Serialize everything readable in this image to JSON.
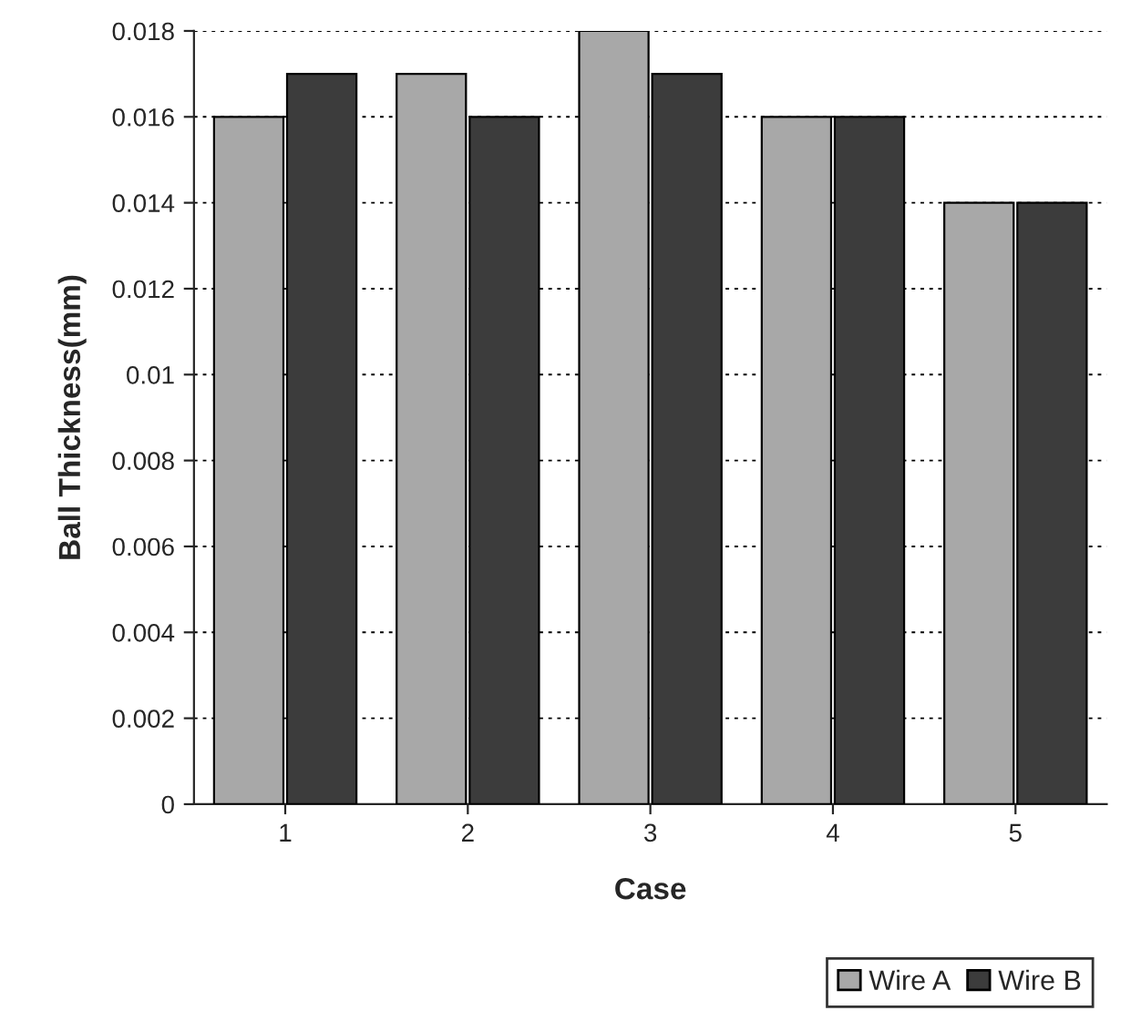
{
  "chart_data": {
    "type": "bar",
    "xlabel": "Case",
    "ylabel": "Ball Thickness(mm)",
    "categories": [
      "1",
      "2",
      "3",
      "4",
      "5"
    ],
    "series": [
      {
        "name": "Wire A",
        "color": "#a8a8a8",
        "values": [
          0.016,
          0.017,
          0.018,
          0.016,
          0.014
        ]
      },
      {
        "name": "Wire B",
        "color": "#3c3c3c",
        "values": [
          0.017,
          0.016,
          0.017,
          0.016,
          0.014
        ]
      }
    ],
    "ylim": [
      0,
      0.018
    ],
    "yticks": [
      0,
      0.002,
      0.004,
      0.006,
      0.008,
      0.01,
      0.012,
      0.014,
      0.016,
      0.018
    ],
    "grid": "y",
    "legend": "bottom right"
  }
}
